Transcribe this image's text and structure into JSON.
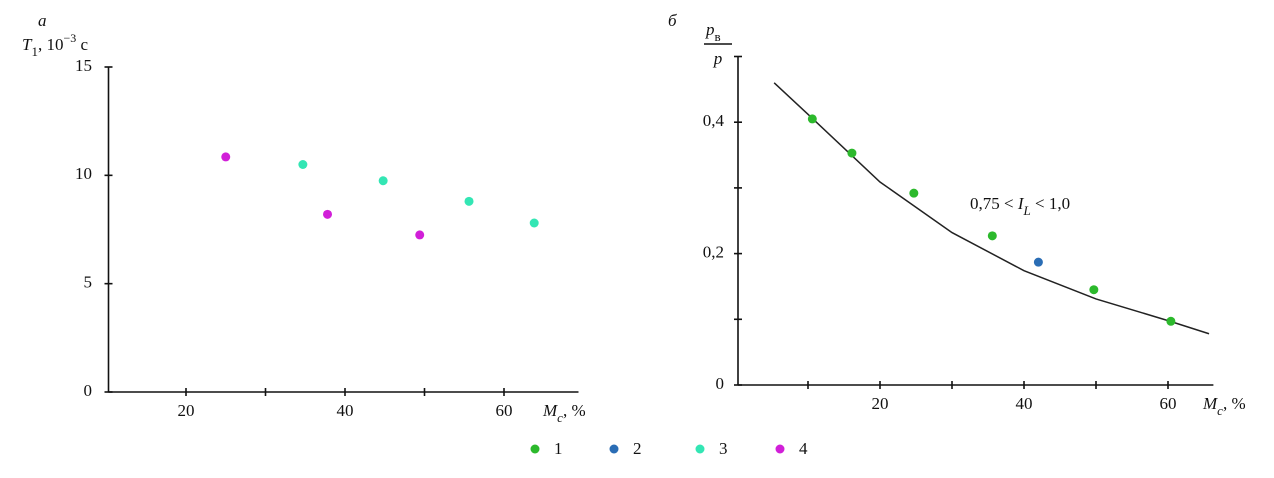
{
  "chart_data": [
    {
      "type": "scatter",
      "panel": "а",
      "ylabel": [
        "T",
        "1",
        ", 10",
        "−3",
        " с"
      ],
      "xlabel": [
        "M",
        "c",
        ", %"
      ],
      "xlim": [
        10,
        70
      ],
      "xticks": [
        20,
        40,
        60
      ],
      "xminorticks": [
        30,
        50
      ],
      "ylim": [
        0,
        15
      ],
      "yticks": [
        0,
        5,
        10,
        15
      ],
      "series": [
        {
          "name": "3",
          "color": "#33e6b4",
          "x": [
            34.7,
            44.8,
            55.6,
            63.8
          ],
          "values": [
            10.5,
            9.75,
            8.8,
            7.8
          ]
        },
        {
          "name": "4",
          "color": "#d11fd8",
          "x": [
            25,
            37.8,
            49.4
          ],
          "values": [
            10.85,
            8.2,
            7.25
          ]
        }
      ]
    },
    {
      "type": "scatter",
      "panel": "б",
      "ylabel": {
        "numerator": [
          "p",
          "в"
        ],
        "denominator": "p"
      },
      "xlabel": [
        "M",
        "c",
        ", %"
      ],
      "annotation": [
        "0,75 < ",
        "I",
        "L",
        " < 1,0"
      ],
      "xlim": [
        0,
        67
      ],
      "xticks": [
        20,
        40,
        60
      ],
      "xminorticks": [
        10,
        30,
        50
      ],
      "ylim": [
        0,
        0.5
      ],
      "yticks": [
        0,
        {
          "value": 0.2,
          "label": "0,2"
        },
        {
          "value": 0.4,
          "label": "0,4"
        }
      ],
      "yminorticks": [
        0.1,
        0.3,
        0.5
      ],
      "curve": {
        "color": "#222222",
        "x": [
          5.3,
          10,
          20,
          30,
          40,
          50,
          60,
          65.7
        ],
        "values": [
          0.46,
          0.412,
          0.309,
          0.232,
          0.174,
          0.131,
          0.098,
          0.078
        ]
      },
      "series": [
        {
          "name": "1",
          "color": "#2cb92c",
          "x": [
            10.6,
            16.1,
            24.7,
            35.6,
            49.7,
            60.4
          ],
          "values": [
            0.405,
            0.353,
            0.292,
            0.227,
            0.145,
            0.097
          ]
        },
        {
          "name": "2",
          "color": "#2a6db5",
          "x": [
            42
          ],
          "values": [
            0.187
          ]
        }
      ]
    }
  ]
}
